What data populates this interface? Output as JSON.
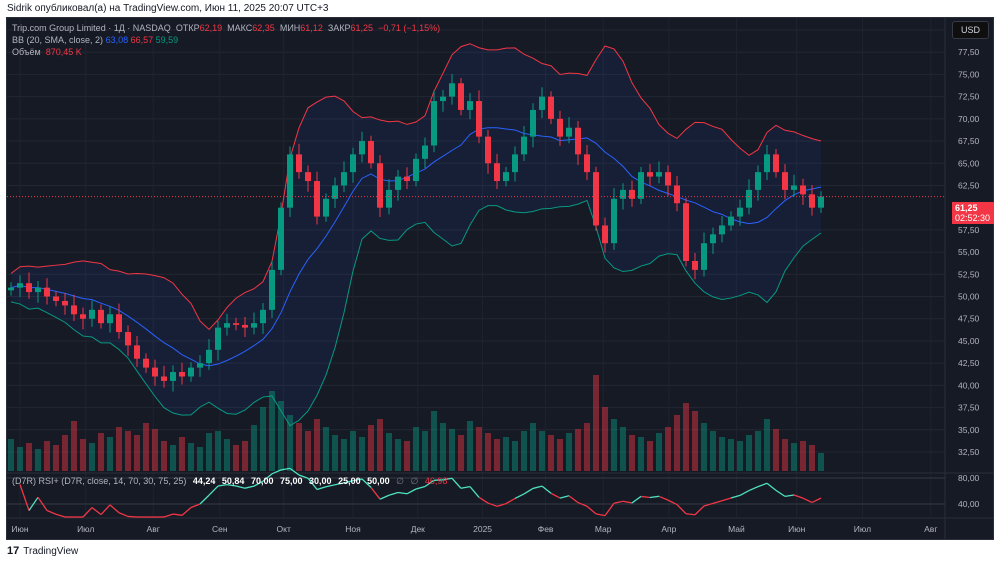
{
  "publisher_line": "Sidrik опубликовал(а) на TradingView.com, Июн 11, 2025 20:07 UTC+3",
  "legend": {
    "symbol": "Trip.com Group Limited · 1Д · NASDAQ",
    "open_label": "ОТКР",
    "open": "62,19",
    "high_label": "МАКС",
    "high": "62,35",
    "low_label": "МИН",
    "low": "61,12",
    "close_label": "ЗАКР",
    "close": "61,25",
    "change": "−0,71 (−1,15%)",
    "bb_label": "BB (20, SMA, close, 2)",
    "bb_basis": "63,08",
    "bb_upper": "66,57",
    "bb_lower": "59,59",
    "volume_label": "Объём",
    "volume": "870,45 K"
  },
  "rsi_legend": {
    "label": "(D7R) RSI+ (D7R, close, 14, 70, 30, 75, 25)",
    "values": [
      "44,24",
      "50,84",
      "70,00",
      "75,00",
      "30,00",
      "25,00",
      "50,00"
    ],
    "empty1": "∅",
    "empty2": "∅",
    "last": "46,98"
  },
  "currency": "USD",
  "last_price": {
    "price": "61,25",
    "countdown": "02:52:30"
  },
  "footer_logo": "TradingView",
  "colors": {
    "up": "#089981",
    "down": "#f23645",
    "bb_basis": "#2962ff",
    "bb_upper": "#f23645",
    "bb_lower": "#089981",
    "rsi_up": "#4de3c0",
    "rsi_down": "#f23645"
  },
  "chart_data": {
    "type": "candlestick",
    "title": "Trip.com Group Limited · 1Д · NASDAQ",
    "ylim": [
      30,
      82.5
    ],
    "y_ticks": [
      "80,00",
      "77,50",
      "75,00",
      "72,50",
      "70,00",
      "67,50",
      "65,00",
      "62,50",
      "57,50",
      "55,00",
      "52,50",
      "50,00",
      "47,50",
      "45,00",
      "42,50",
      "40,00",
      "37,50",
      "35,00",
      "32,50"
    ],
    "y_tick_values": [
      80,
      77.5,
      75,
      72.5,
      70,
      67.5,
      65,
      62.5,
      57.5,
      55,
      52.5,
      50,
      47.5,
      45,
      42.5,
      40,
      37.5,
      35,
      32.5
    ],
    "rsi_ticks": [
      "80,00",
      "40,00"
    ],
    "rsi_tick_values": [
      80,
      40
    ],
    "month_ticks": [
      {
        "label": "Июн",
        "index": 1
      },
      {
        "label": "Июл",
        "index": 8.3
      },
      {
        "label": "Авг",
        "index": 15.8
      },
      {
        "label": "Сен",
        "index": 23.2
      },
      {
        "label": "Окт",
        "index": 30.3
      },
      {
        "label": "Ноя",
        "index": 38
      },
      {
        "label": "Дек",
        "index": 45.2
      },
      {
        "label": "2025",
        "index": 52.4
      },
      {
        "label": "Фев",
        "index": 59.4
      },
      {
        "label": "Мар",
        "index": 65.8
      },
      {
        "label": "Апр",
        "index": 73.1
      },
      {
        "label": "Май",
        "index": 80.6
      },
      {
        "label": "Июн",
        "index": 87.3
      },
      {
        "label": "Июл",
        "index": 94.6
      },
      {
        "label": "Авг",
        "index": 102.2
      }
    ],
    "closes": [
      51,
      51.5,
      50.5,
      51,
      50,
      49.5,
      49,
      48,
      47.5,
      48.5,
      47,
      48,
      46,
      44.5,
      43,
      42,
      41,
      40.5,
      41.5,
      41,
      42,
      42.5,
      44,
      46.5,
      47,
      46.8,
      46.5,
      47,
      48.5,
      53,
      60,
      66,
      64,
      63,
      59,
      61,
      62.5,
      64,
      66,
      67.5,
      65,
      60,
      62,
      63.5,
      63,
      65.5,
      67,
      72,
      72.5,
      74,
      71,
      72,
      68,
      65,
      63,
      64,
      66,
      68,
      71,
      72.5,
      70,
      68,
      69,
      66,
      64,
      58,
      56,
      61,
      62,
      61,
      64,
      63.5,
      64,
      62.5,
      60.5,
      54,
      53,
      56,
      57,
      58,
      59,
      60,
      62,
      64,
      66,
      64,
      62,
      62.5,
      61.5,
      60,
      61.25
    ],
    "volumes_m": [
      1.6,
      1.2,
      1.4,
      1.1,
      1.5,
      1.3,
      1.8,
      2.5,
      1.6,
      1.4,
      1.9,
      1.7,
      2.2,
      2.0,
      1.8,
      2.4,
      2.1,
      1.5,
      1.3,
      1.7,
      1.4,
      1.2,
      1.9,
      2.0,
      1.6,
      1.3,
      1.5,
      2.3,
      3.2,
      4.0,
      3.5,
      2.8,
      2.4,
      2.0,
      2.6,
      2.2,
      1.8,
      1.6,
      2.0,
      1.7,
      2.3,
      2.6,
      1.9,
      1.6,
      1.5,
      2.2,
      2.0,
      3.0,
      2.4,
      2.1,
      1.8,
      2.5,
      2.2,
      1.9,
      1.6,
      1.7,
      1.5,
      2.0,
      2.4,
      2.0,
      1.8,
      1.6,
      1.9,
      2.1,
      2.4,
      4.8,
      3.2,
      2.6,
      2.2,
      1.8,
      1.7,
      1.5,
      1.9,
      2.2,
      2.8,
      3.4,
      3.0,
      2.4,
      2.0,
      1.7,
      1.6,
      1.5,
      1.8,
      2.0,
      2.6,
      2.1,
      1.6,
      1.4,
      1.5,
      1.3,
      0.9
    ]
  }
}
